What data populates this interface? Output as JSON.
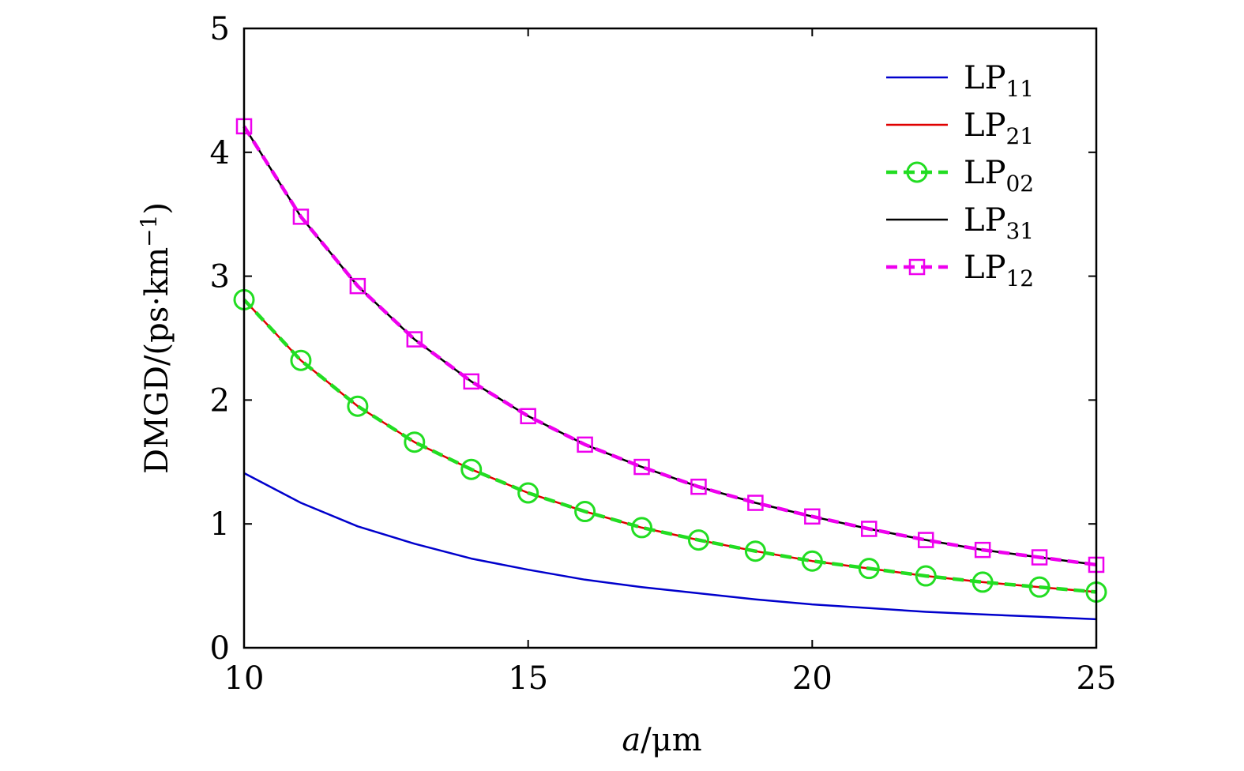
{
  "chart_data": {
    "type": "line",
    "title": "",
    "xlabel": "a/μm",
    "xlabel_italic": "a",
    "xlabel_rest": "/μm",
    "ylabel": "DMGD/(ps·km⁻¹)",
    "ylabel_main": "DMGD/(ps·km",
    "ylabel_sup": "−1",
    "ylabel_close": ")",
    "xlim": [
      10,
      25
    ],
    "ylim": [
      0,
      5
    ],
    "xticks": [
      10,
      15,
      20,
      25
    ],
    "yticks": [
      0,
      1,
      2,
      3,
      4,
      5
    ],
    "grid": false,
    "legend_position": "top-right",
    "x": [
      10,
      11,
      12,
      13,
      14,
      15,
      16,
      17,
      18,
      19,
      20,
      21,
      22,
      23,
      24,
      25
    ],
    "series": [
      {
        "name": "LP11",
        "label_main": "LP",
        "label_sub": "11",
        "color": "#0000cc",
        "dashed": false,
        "marker": "none",
        "values": [
          1.41,
          1.17,
          0.98,
          0.84,
          0.72,
          0.63,
          0.55,
          0.49,
          0.44,
          0.39,
          0.35,
          0.32,
          0.29,
          0.27,
          0.25,
          0.23
        ]
      },
      {
        "name": "LP21",
        "label_main": "LP",
        "label_sub": "21",
        "color": "#e00000",
        "dashed": false,
        "marker": "none",
        "values": [
          2.81,
          2.32,
          1.95,
          1.66,
          1.44,
          1.25,
          1.1,
          0.97,
          0.87,
          0.78,
          0.7,
          0.64,
          0.58,
          0.53,
          0.49,
          0.45
        ]
      },
      {
        "name": "LP02",
        "label_main": "LP",
        "label_sub": "02",
        "color": "#22dd22",
        "dashed": true,
        "marker": "circle",
        "values": [
          2.81,
          2.32,
          1.95,
          1.66,
          1.44,
          1.25,
          1.1,
          0.97,
          0.87,
          0.78,
          0.7,
          0.64,
          0.58,
          0.53,
          0.49,
          0.45
        ]
      },
      {
        "name": "LP31",
        "label_main": "LP",
        "label_sub": "31",
        "color": "#000000",
        "dashed": false,
        "marker": "none",
        "values": [
          4.21,
          3.48,
          2.92,
          2.49,
          2.15,
          1.87,
          1.64,
          1.46,
          1.3,
          1.17,
          1.06,
          0.96,
          0.87,
          0.79,
          0.73,
          0.67
        ]
      },
      {
        "name": "LP12",
        "label_main": "LP",
        "label_sub": "12",
        "color": "#ee00ee",
        "dashed": true,
        "marker": "square",
        "values": [
          4.21,
          3.48,
          2.92,
          2.49,
          2.15,
          1.87,
          1.64,
          1.46,
          1.3,
          1.17,
          1.06,
          0.96,
          0.87,
          0.79,
          0.73,
          0.67
        ]
      }
    ]
  }
}
